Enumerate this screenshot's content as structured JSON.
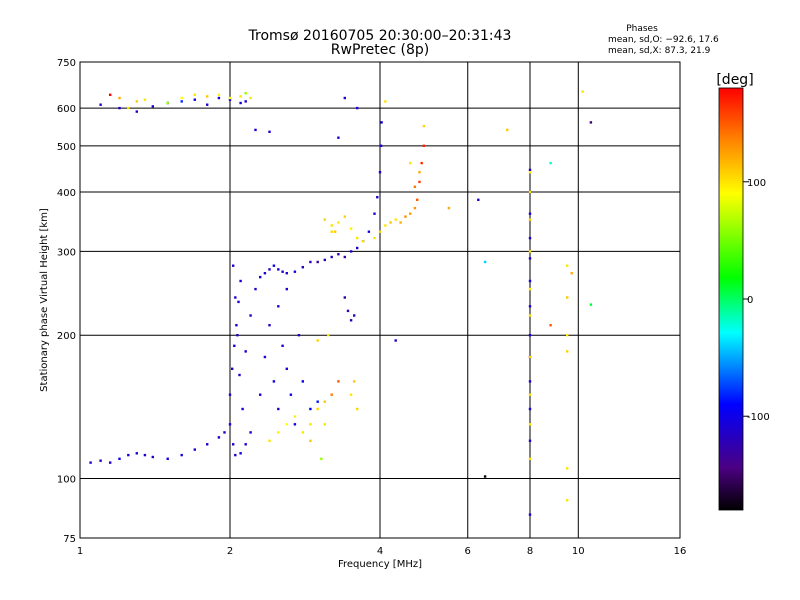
{
  "chart_data": {
    "type": "scatter",
    "title": "Tromsø 20160705 20:30:00–20:31:43",
    "subtitle": "RwPretec (8p)",
    "xlabel": "Frequency [MHz]",
    "ylabel": "Stationary phase Virtual Height [km]",
    "x_scale": "log",
    "y_scale": "log",
    "xlim": [
      1,
      16
    ],
    "ylim": [
      75,
      750
    ],
    "x_ticks": [
      1,
      2,
      4,
      6,
      8,
      10,
      16
    ],
    "y_ticks": [
      75,
      100,
      200,
      300,
      400,
      500,
      600,
      750
    ],
    "x_gridlines": [
      2,
      4,
      6,
      8,
      10
    ],
    "y_gridlines": [
      100,
      200,
      300,
      400,
      500,
      600
    ],
    "grid": true,
    "legend": {
      "heading": "Phases",
      "line1": "mean, sd,O: −92.6, 17.6",
      "line2": "mean, sd,X:  87.3, 21.9",
      "placement": "top-right"
    },
    "colorbar": {
      "label": "[deg]",
      "range": [
        -180,
        180
      ],
      "ticks": [
        100,
        0,
        -100
      ]
    },
    "series": [
      {
        "component": "O",
        "points": [
          [
            1.05,
            108,
            -110
          ],
          [
            1.1,
            109,
            -112
          ],
          [
            1.15,
            108,
            -108
          ],
          [
            1.2,
            110,
            -100
          ],
          [
            1.25,
            112,
            -105
          ],
          [
            1.3,
            113,
            -108
          ],
          [
            1.35,
            112,
            -110
          ],
          [
            1.4,
            111,
            -112
          ],
          [
            1.5,
            110,
            -105
          ],
          [
            1.6,
            112,
            -100
          ],
          [
            1.7,
            115,
            -110
          ],
          [
            1.8,
            118,
            -108
          ],
          [
            1.9,
            122,
            -105
          ],
          [
            1.95,
            125,
            -110
          ],
          [
            2.0,
            130,
            -108
          ],
          [
            2.03,
            118,
            -112
          ],
          [
            2.05,
            112,
            -110
          ],
          [
            2.1,
            113,
            -100
          ],
          [
            2.15,
            118,
            -105
          ],
          [
            2.2,
            125,
            -110
          ],
          [
            2.0,
            150,
            -115
          ],
          [
            2.02,
            170,
            -110
          ],
          [
            2.04,
            190,
            -105
          ],
          [
            2.06,
            210,
            -110
          ],
          [
            2.08,
            235,
            -112
          ],
          [
            2.1,
            260,
            -108
          ],
          [
            2.03,
            280,
            -110
          ],
          [
            2.05,
            240,
            -112
          ],
          [
            2.07,
            200,
            -115
          ],
          [
            2.09,
            165,
            -110
          ],
          [
            2.12,
            140,
            -105
          ],
          [
            2.15,
            185,
            -108
          ],
          [
            2.2,
            220,
            -110
          ],
          [
            2.25,
            250,
            -112
          ],
          [
            2.3,
            265,
            -110
          ],
          [
            2.35,
            270,
            -105
          ],
          [
            2.4,
            275,
            -110
          ],
          [
            2.45,
            280,
            -100
          ],
          [
            2.5,
            275,
            -108
          ],
          [
            2.55,
            272,
            -110
          ],
          [
            2.6,
            270,
            -112
          ],
          [
            2.7,
            272,
            -100
          ],
          [
            2.8,
            278,
            -115
          ],
          [
            2.9,
            285,
            -125
          ],
          [
            3.0,
            285,
            -130
          ],
          [
            3.1,
            288,
            -120
          ],
          [
            3.2,
            292,
            -115
          ],
          [
            3.3,
            296,
            -128
          ],
          [
            3.4,
            292,
            -130
          ],
          [
            3.5,
            300,
            -110
          ],
          [
            3.6,
            305,
            -108
          ],
          [
            3.7,
            315,
            -105
          ],
          [
            3.8,
            330,
            -110
          ],
          [
            3.9,
            360,
            -108
          ],
          [
            3.95,
            390,
            -112
          ],
          [
            4.0,
            440,
            -110
          ],
          [
            4.02,
            500,
            -108
          ],
          [
            4.03,
            560,
            -105
          ],
          [
            2.3,
            150,
            -108
          ],
          [
            2.35,
            180,
            -110
          ],
          [
            2.4,
            210,
            -112
          ],
          [
            2.45,
            160,
            -105
          ],
          [
            2.5,
            140,
            -110
          ],
          [
            2.55,
            190,
            -108
          ],
          [
            2.6,
            170,
            -110
          ],
          [
            2.65,
            150,
            -100
          ],
          [
            2.7,
            130,
            -105
          ],
          [
            2.75,
            200,
            -110
          ],
          [
            2.8,
            160,
            -95
          ],
          [
            2.9,
            140,
            -90
          ],
          [
            3.0,
            145,
            -85
          ],
          [
            2.5,
            230,
            -108
          ],
          [
            2.6,
            250,
            -110
          ],
          [
            3.4,
            240,
            -125
          ],
          [
            3.45,
            225,
            -130
          ],
          [
            3.5,
            215,
            -120
          ],
          [
            3.55,
            220,
            -115
          ],
          [
            1.1,
            610,
            -115
          ],
          [
            1.2,
            600,
            -110
          ],
          [
            1.3,
            590,
            -112
          ],
          [
            1.4,
            605,
            -108
          ],
          [
            1.5,
            615,
            -110
          ],
          [
            1.6,
            620,
            -80
          ],
          [
            1.7,
            625,
            -100
          ],
          [
            1.8,
            610,
            -110
          ],
          [
            1.9,
            630,
            -112
          ],
          [
            2.0,
            625,
            -100
          ],
          [
            2.1,
            615,
            -105
          ],
          [
            2.15,
            620,
            -110
          ],
          [
            2.25,
            540,
            -110
          ],
          [
            2.4,
            535,
            -112
          ],
          [
            3.4,
            630,
            -110
          ],
          [
            3.6,
            600,
            -108
          ],
          [
            3.3,
            520,
            -110
          ],
          [
            4.3,
            195,
            -112
          ],
          [
            8.0,
            445,
            -110
          ],
          [
            8.0,
            400,
            -112
          ],
          [
            8.0,
            360,
            -108
          ],
          [
            8.0,
            320,
            -110
          ],
          [
            8.0,
            290,
            -112
          ],
          [
            8.0,
            260,
            -105
          ],
          [
            8.0,
            230,
            -110
          ],
          [
            8.0,
            200,
            -108
          ],
          [
            8.0,
            180,
            -110
          ],
          [
            8.0,
            160,
            -112
          ],
          [
            8.0,
            140,
            -105
          ],
          [
            8.0,
            120,
            -110
          ],
          [
            8.0,
            84,
            -108
          ],
          [
            6.5,
            285,
            -40
          ],
          [
            6.5,
            101,
            -180
          ],
          [
            10.6,
            560,
            -150
          ],
          [
            6.3,
            385,
            -110
          ],
          [
            8.8,
            460,
            -20
          ]
        ]
      },
      {
        "component": "X",
        "points": [
          [
            1.15,
            640,
            180
          ],
          [
            1.2,
            630,
            120
          ],
          [
            1.25,
            600,
            100
          ],
          [
            1.3,
            620,
            110
          ],
          [
            1.35,
            625,
            100
          ],
          [
            1.5,
            615,
            60
          ],
          [
            1.6,
            630,
            90
          ],
          [
            1.7,
            640,
            100
          ],
          [
            1.8,
            635,
            110
          ],
          [
            1.9,
            640,
            95
          ],
          [
            2.0,
            630,
            90
          ],
          [
            2.1,
            635,
            100
          ],
          [
            2.2,
            630,
            100
          ],
          [
            2.15,
            645,
            60
          ],
          [
            3.1,
            350,
            105
          ],
          [
            3.2,
            340,
            100
          ],
          [
            3.25,
            330,
            110
          ],
          [
            3.3,
            345,
            98
          ],
          [
            3.4,
            355,
            105
          ],
          [
            3.5,
            335,
            95
          ],
          [
            3.6,
            320,
            100
          ],
          [
            3.7,
            315,
            100
          ],
          [
            3.9,
            320,
            100
          ],
          [
            4.0,
            330,
            105
          ],
          [
            4.1,
            340,
            100
          ],
          [
            4.2,
            345,
            110
          ],
          [
            4.3,
            350,
            100
          ],
          [
            4.4,
            345,
            120
          ],
          [
            4.5,
            355,
            130
          ],
          [
            4.6,
            360,
            125
          ],
          [
            4.7,
            370,
            130
          ],
          [
            4.75,
            385,
            150
          ],
          [
            4.8,
            420,
            160
          ],
          [
            4.85,
            460,
            165
          ],
          [
            4.9,
            500,
            170
          ],
          [
            4.8,
            440,
            120
          ],
          [
            4.7,
            410,
            140
          ],
          [
            2.4,
            120,
            100
          ],
          [
            2.5,
            125,
            95
          ],
          [
            2.6,
            130,
            90
          ],
          [
            2.7,
            135,
            95
          ],
          [
            2.8,
            125,
            100
          ],
          [
            2.9,
            130,
            100
          ],
          [
            3.0,
            140,
            105
          ],
          [
            3.1,
            145,
            110
          ],
          [
            3.2,
            150,
            140
          ],
          [
            3.1,
            130,
            100
          ],
          [
            3.3,
            160,
            150
          ],
          [
            3.05,
            110,
            60
          ],
          [
            2.9,
            120,
            110
          ],
          [
            3.0,
            195,
            105
          ],
          [
            3.15,
            200,
            100
          ],
          [
            3.5,
            150,
            100
          ],
          [
            3.6,
            140,
            105
          ],
          [
            3.55,
            160,
            110
          ],
          [
            8.0,
            440,
            95
          ],
          [
            8.0,
            400,
            100
          ],
          [
            8.0,
            350,
            105
          ],
          [
            8.0,
            300,
            100
          ],
          [
            8.0,
            250,
            95
          ],
          [
            8.0,
            220,
            100
          ],
          [
            8.0,
            180,
            105
          ],
          [
            8.0,
            150,
            100
          ],
          [
            8.0,
            130,
            95
          ],
          [
            8.0,
            110,
            100
          ],
          [
            9.5,
            280,
            100
          ],
          [
            9.5,
            240,
            110
          ],
          [
            9.5,
            200,
            100
          ],
          [
            9.5,
            185,
            105
          ],
          [
            9.5,
            105,
            100
          ],
          [
            9.5,
            90,
            100
          ],
          [
            7.2,
            540,
            110
          ],
          [
            10.2,
            650,
            100
          ],
          [
            5.5,
            370,
            120
          ],
          [
            4.9,
            550,
            105
          ],
          [
            4.6,
            460,
            100
          ],
          [
            3.2,
            330,
            105
          ],
          [
            4.1,
            620,
            100
          ],
          [
            10.6,
            232,
            10
          ],
          [
            8.8,
            210,
            150
          ],
          [
            9.7,
            270,
            120
          ]
        ]
      }
    ]
  }
}
